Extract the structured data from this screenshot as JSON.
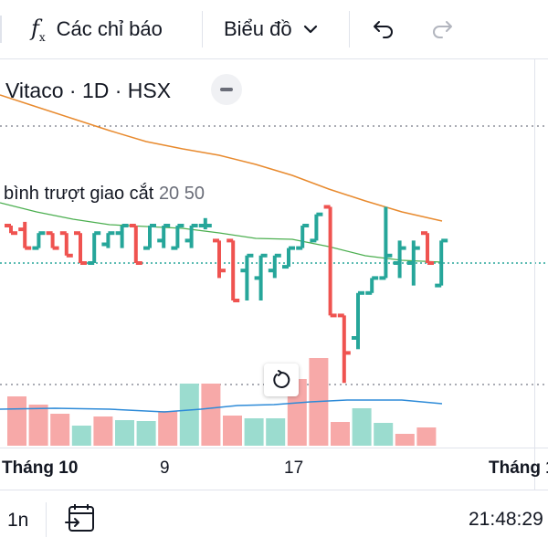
{
  "toolbar": {
    "indicators_label": "Các chỉ báo",
    "chart_type_label": "Biểu đồ",
    "indicator_icon": "function-fx-icon",
    "undo_icon": "undo-icon",
    "redo_icon": "redo-icon"
  },
  "legend": {
    "symbol_line": "Vitaco · 1D · HSX",
    "ma_name": "bình trượt giao cắt",
    "ma_params": "20 50"
  },
  "x_axis": {
    "labels": [
      "Tháng 10",
      "9",
      "17",
      "Tháng 1"
    ]
  },
  "bottom_bar": {
    "interval": "1n",
    "clock": "21:48:29",
    "goto_date_icon": "calendar-goto-icon"
  },
  "colors": {
    "up": "#26a69a",
    "down": "#ef5350",
    "up_volume": "#9bdccf",
    "down_volume": "#f7a9a8",
    "ma20": "#4caf50",
    "ma50": "#e88a2e",
    "volume_ma": "#2e8bd8"
  },
  "chart_data": {
    "type": "ohlc",
    "bars": [
      {
        "o": 5,
        "h": 5,
        "l": 4,
        "c": 4
      },
      {
        "o": 4.5,
        "h": 5.5,
        "l": 2,
        "c": 2
      },
      {
        "o": 2,
        "h": 4,
        "l": 2,
        "c": 4
      },
      {
        "o": 4,
        "h": 4,
        "l": 2,
        "c": 2
      },
      {
        "o": 4,
        "h": 4,
        "l": 1,
        "c": 1
      },
      {
        "o": 4,
        "h": 4,
        "l": 0,
        "c": 0
      },
      {
        "o": 0,
        "h": 4,
        "l": 0,
        "c": 4
      },
      {
        "o": 2.5,
        "h": 4,
        "l": 2,
        "c": 4
      },
      {
        "o": 4,
        "h": 5,
        "l": 2,
        "c": 5
      },
      {
        "o": 5,
        "h": 5,
        "l": 0,
        "c": 0
      },
      {
        "o": 2,
        "h": 5,
        "l": 2,
        "c": 5
      },
      {
        "o": 3,
        "h": 5,
        "l": 2,
        "c": 5
      },
      {
        "o": 2,
        "h": 5,
        "l": 2,
        "c": 5
      },
      {
        "o": 3,
        "h": 5,
        "l": 2,
        "c": 5
      },
      {
        "o": 5,
        "h": 6,
        "l": 4.5,
        "c": 5
      },
      {
        "o": 3,
        "h": 3,
        "l": -2,
        "c": -1
      },
      {
        "o": 3,
        "h": 3,
        "l": -5,
        "c": -5
      },
      {
        "o": -1,
        "h": 1,
        "l": -5,
        "c": 1
      },
      {
        "o": -2,
        "h": 1,
        "l": -5,
        "c": 1
      },
      {
        "o": -1,
        "h": 1,
        "l": -2,
        "c": 1
      },
      {
        "o": -0.5,
        "h": 2,
        "l": -0.5,
        "c": 2
      },
      {
        "o": 2,
        "h": 5,
        "l": 2,
        "c": 5
      },
      {
        "o": 3,
        "h": 6.5,
        "l": 3,
        "c": 6.5
      },
      {
        "o": 7.5,
        "h": 7.5,
        "l": -7,
        "c": -7
      },
      {
        "o": -7,
        "h": -7,
        "l": -16,
        "c": -12
      },
      {
        "o": -10,
        "h": -4,
        "l": -11.5,
        "c": -4
      },
      {
        "o": -4,
        "h": -2,
        "l": -4,
        "c": -2
      },
      {
        "o": -2,
        "h": 7.5,
        "l": -2,
        "c": 1
      },
      {
        "o": 0,
        "h": 3,
        "l": -2,
        "c": 2
      },
      {
        "o": 0,
        "h": 3,
        "l": -3,
        "c": 2
      },
      {
        "o": 4,
        "h": 4,
        "l": 0,
        "c": 0
      },
      {
        "o": -3,
        "h": 3,
        "l": -3,
        "c": 3
      }
    ],
    "volume": [
      {
        "v": 54,
        "up": false
      },
      {
        "v": 45,
        "up": false
      },
      {
        "v": 35,
        "up": false
      },
      {
        "v": 22,
        "up": true
      },
      {
        "v": 32,
        "up": false
      },
      {
        "v": 28,
        "up": true
      },
      {
        "v": 27,
        "up": true
      },
      {
        "v": 38,
        "up": false
      },
      {
        "v": 68,
        "up": true
      },
      {
        "v": 68,
        "up": false
      },
      {
        "v": 33,
        "up": false
      },
      {
        "v": 30,
        "up": true
      },
      {
        "v": 30,
        "up": true
      },
      {
        "v": 73,
        "up": false
      },
      {
        "v": 96,
        "up": false
      },
      {
        "v": 26,
        "up": false
      },
      {
        "v": 41,
        "up": true
      },
      {
        "v": 25,
        "up": true
      },
      {
        "v": 13,
        "up": false
      },
      {
        "v": 20,
        "up": false
      }
    ],
    "price_levels": [
      2,
      0
    ]
  }
}
